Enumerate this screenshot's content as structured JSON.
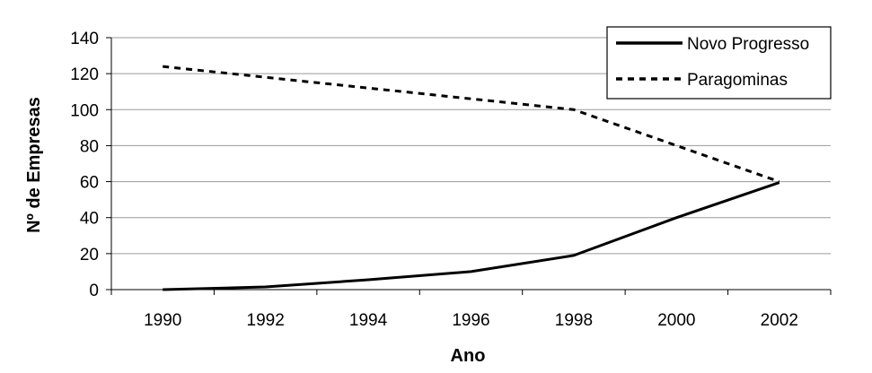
{
  "chart_data": {
    "type": "line",
    "title": "",
    "xlabel": "Ano",
    "ylabel": "Nº de Empresas",
    "x": [
      1990,
      1992,
      1994,
      1996,
      1998,
      2000,
      2002
    ],
    "xticks": [
      "1990",
      "1992",
      "1994",
      "1996",
      "1998",
      "2000",
      "2002"
    ],
    "yticks": [
      "0",
      "20",
      "40",
      "60",
      "80",
      "100",
      "120",
      "140"
    ],
    "ylim": [
      0,
      140
    ],
    "grid": "horizontal",
    "legend_position": "top-right",
    "series": [
      {
        "name": "Novo Progresso",
        "style": "solid",
        "color": "#000000",
        "values": [
          0,
          1.5,
          5.5,
          10,
          19,
          40,
          59.5
        ]
      },
      {
        "name": "Paragominas",
        "style": "dashed",
        "color": "#000000",
        "values": [
          124,
          118,
          112,
          106,
          100,
          80,
          60
        ]
      }
    ]
  }
}
